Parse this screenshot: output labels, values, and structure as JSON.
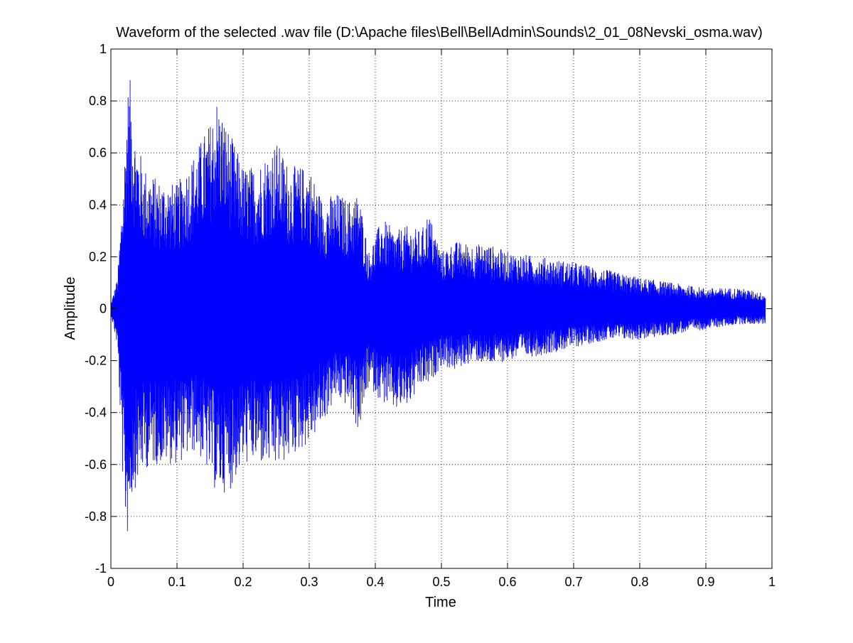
{
  "chart_data": {
    "type": "line",
    "title": "Waveform of the selected .wav file (D:\\Apache files\\Bell\\BellAdmin\\Sounds\\2_01_08Nevski_osma.wav)",
    "xlabel": "Time",
    "ylabel": "Amplitude",
    "xlim": [
      0,
      1
    ],
    "ylim": [
      -1,
      1
    ],
    "xticks": [
      "0",
      "0.1",
      "0.2",
      "0.3",
      "0.4",
      "0.5",
      "0.6",
      "0.7",
      "0.8",
      "0.9",
      "1"
    ],
    "yticks": [
      "1",
      "0.8",
      "0.6",
      "0.4",
      "0.2",
      "0",
      "-0.2",
      "-0.4",
      "-0.6",
      "-0.8",
      "-1"
    ],
    "grid": true,
    "grid_style": "dotted",
    "series": [
      {
        "color": "#0000ff",
        "x": [
          0.0,
          0.01,
          0.02,
          0.025,
          0.03,
          0.035,
          0.05,
          0.07,
          0.1,
          0.13,
          0.15,
          0.16,
          0.18,
          0.2,
          0.22,
          0.25,
          0.27,
          0.3,
          0.32,
          0.34,
          0.36,
          0.375,
          0.39,
          0.41,
          0.43,
          0.45,
          0.47,
          0.48,
          0.5,
          0.52,
          0.55,
          0.57,
          0.6,
          0.65,
          0.7,
          0.75,
          0.8,
          0.85,
          0.9,
          0.95,
          0.99
        ],
        "upper": [
          0.02,
          0.12,
          0.55,
          0.85,
          0.89,
          0.7,
          0.55,
          0.5,
          0.48,
          0.62,
          0.72,
          0.82,
          0.68,
          0.55,
          0.55,
          0.65,
          0.55,
          0.55,
          0.42,
          0.45,
          0.42,
          0.45,
          0.22,
          0.35,
          0.3,
          0.32,
          0.3,
          0.38,
          0.22,
          0.26,
          0.25,
          0.25,
          0.22,
          0.2,
          0.18,
          0.15,
          0.12,
          0.1,
          0.08,
          0.08,
          0.06
        ],
        "lower": [
          -0.02,
          -0.15,
          -0.8,
          -0.88,
          -0.75,
          -0.7,
          -0.62,
          -0.6,
          -0.6,
          -0.55,
          -0.65,
          -0.72,
          -0.7,
          -0.6,
          -0.6,
          -0.62,
          -0.58,
          -0.52,
          -0.45,
          -0.35,
          -0.38,
          -0.48,
          -0.3,
          -0.36,
          -0.4,
          -0.38,
          -0.3,
          -0.3,
          -0.22,
          -0.24,
          -0.2,
          -0.22,
          -0.2,
          -0.18,
          -0.15,
          -0.12,
          -0.12,
          -0.1,
          -0.08,
          -0.06,
          -0.06
        ]
      }
    ]
  }
}
